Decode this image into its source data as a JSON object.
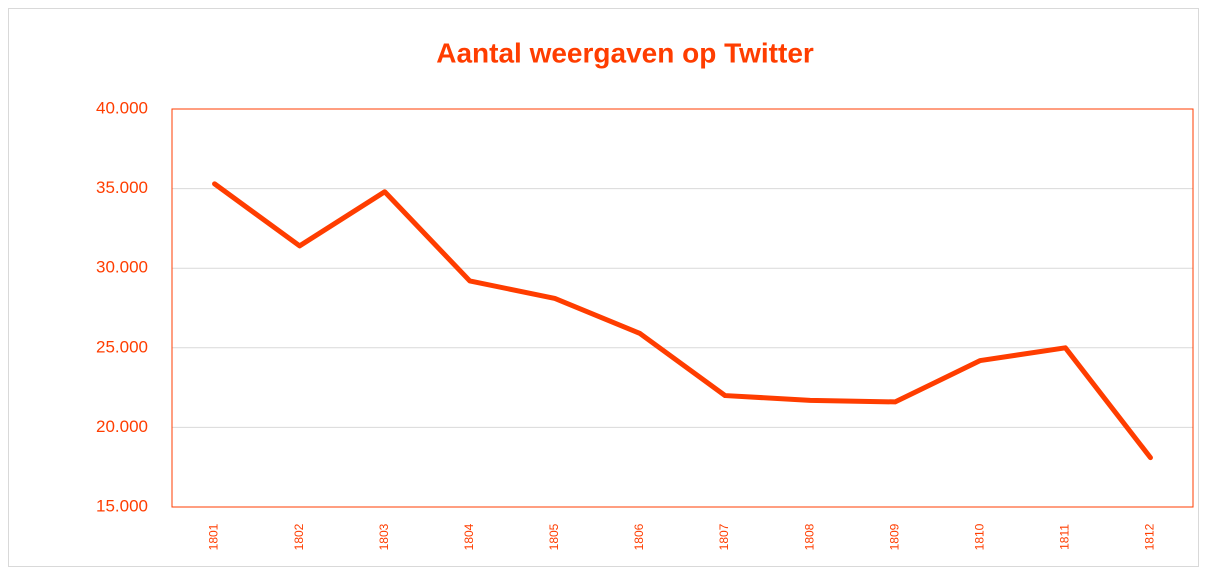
{
  "chart_data": {
    "type": "line",
    "title": "Aantal weergaven op Twitter",
    "categories": [
      "1801",
      "1802",
      "1803",
      "1804",
      "1805",
      "1806",
      "1807",
      "1808",
      "1809",
      "1810",
      "1811",
      "1812"
    ],
    "values": [
      35300,
      31400,
      34800,
      29200,
      28100,
      25900,
      22000,
      21700,
      21600,
      24200,
      25000,
      18100
    ],
    "color": "#ff3d00",
    "ylim": [
      15000,
      40000
    ],
    "yticks": [
      {
        "value": 15000,
        "label": "15.000"
      },
      {
        "value": 20000,
        "label": "20.000"
      },
      {
        "value": 25000,
        "label": "25.000"
      },
      {
        "value": 30000,
        "label": "30.000"
      },
      {
        "value": 35000,
        "label": "35.000"
      },
      {
        "value": 40000,
        "label": "40.000"
      }
    ],
    "grid": true
  }
}
